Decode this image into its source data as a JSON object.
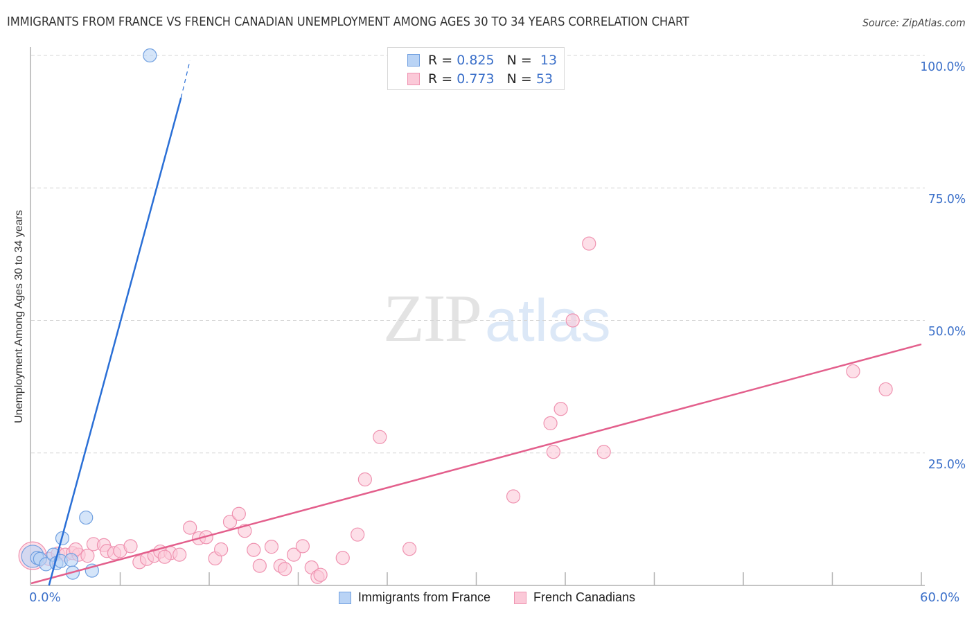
{
  "header": {
    "title": "IMMIGRANTS FROM FRANCE VS FRENCH CANADIAN UNEMPLOYMENT AMONG AGES 30 TO 34 YEARS CORRELATION CHART",
    "source": "Source: ZipAtlas.com"
  },
  "watermark": {
    "zip": "ZIP",
    "atlas": "atlas"
  },
  "stats_box": {
    "rows": [
      {
        "r_label": "R =",
        "r_value": "0.825",
        "n_label": "N =",
        "n_value": "13",
        "color": "#b9d3f5",
        "border": "#6f9fe0"
      },
      {
        "r_label": "R =",
        "r_value": "0.773",
        "n_label": "N =",
        "n_value": "53",
        "color": "#fbc9d8",
        "border": "#ef92b0"
      }
    ]
  },
  "legend": {
    "items": [
      {
        "label": "Immigrants from France",
        "color": "#b9d3f5",
        "border": "#6f9fe0"
      },
      {
        "label": "French Canadians",
        "color": "#fbc9d8",
        "border": "#ef92b0"
      }
    ]
  },
  "axes": {
    "ylabel": "Unemployment Among Ages 30 to 34 years",
    "y_ticks": [
      "100.0%",
      "75.0%",
      "50.0%",
      "25.0%"
    ],
    "x_ticks": [
      "0.0%",
      "60.0%"
    ]
  },
  "chart_data": {
    "type": "scatter",
    "title": "Immigrants from France vs French Canadian Unemployment Among Ages 30 to 34 years Correlation Chart",
    "xlabel": "",
    "ylabel": "Unemployment Among Ages 30 to 34 years",
    "xlim": [
      0,
      60
    ],
    "ylim": [
      0,
      100
    ],
    "x_tick_labels": [
      "0.0%",
      "60.0%"
    ],
    "y_tick_labels": [
      "25.0%",
      "50.0%",
      "75.0%",
      "100.0%"
    ],
    "grid": "horizontal dashed",
    "legend_position": "bottom",
    "series": [
      {
        "name": "Immigrants from France",
        "color": "#6f9fe0",
        "fill": "#b9d3f5",
        "R": 0.825,
        "N": 13,
        "points": [
          {
            "x": 0.1,
            "y": 5.5,
            "r": 16
          },
          {
            "x": 0.4,
            "y": 5.2
          },
          {
            "x": 0.6,
            "y": 5.0
          },
          {
            "x": 1.0,
            "y": 4.0
          },
          {
            "x": 1.5,
            "y": 5.8
          },
          {
            "x": 1.7,
            "y": 4.2
          },
          {
            "x": 2.1,
            "y": 8.9
          },
          {
            "x": 2.0,
            "y": 4.6
          },
          {
            "x": 2.7,
            "y": 4.8
          },
          {
            "x": 2.8,
            "y": 2.4
          },
          {
            "x": 3.7,
            "y": 12.8
          },
          {
            "x": 4.1,
            "y": 2.8
          },
          {
            "x": 8.0,
            "y": 100.0
          }
        ],
        "trendline": {
          "x1": 1.2,
          "y1": 0,
          "x2": 10.1,
          "y2": 92.0,
          "dashed_to": {
            "x": 10.7,
            "y": 99.0
          }
        }
      },
      {
        "name": "French Canadians",
        "color": "#ef92b0",
        "fill": "#fbc9d8",
        "R": 0.773,
        "N": 53,
        "points": [
          {
            "x": 0.1,
            "y": 5.6,
            "r": 20
          },
          {
            "x": 1.2,
            "y": 5.0
          },
          {
            "x": 1.8,
            "y": 6.0
          },
          {
            "x": 2.3,
            "y": 5.8
          },
          {
            "x": 2.8,
            "y": 6.1
          },
          {
            "x": 3.2,
            "y": 5.8
          },
          {
            "x": 3.8,
            "y": 5.6
          },
          {
            "x": 4.2,
            "y": 7.8
          },
          {
            "x": 4.9,
            "y": 7.6
          },
          {
            "x": 5.1,
            "y": 6.5
          },
          {
            "x": 5.6,
            "y": 6.1
          },
          {
            "x": 6.0,
            "y": 6.5
          },
          {
            "x": 6.7,
            "y": 7.4
          },
          {
            "x": 7.3,
            "y": 4.4
          },
          {
            "x": 7.8,
            "y": 5.0
          },
          {
            "x": 8.3,
            "y": 5.6
          },
          {
            "x": 8.7,
            "y": 6.4
          },
          {
            "x": 9.4,
            "y": 6.1
          },
          {
            "x": 10.0,
            "y": 5.8
          },
          {
            "x": 10.7,
            "y": 10.9
          },
          {
            "x": 11.3,
            "y": 8.9
          },
          {
            "x": 11.8,
            "y": 9.1
          },
          {
            "x": 12.4,
            "y": 5.1
          },
          {
            "x": 12.8,
            "y": 6.8
          },
          {
            "x": 13.4,
            "y": 12.0
          },
          {
            "x": 14.0,
            "y": 13.5
          },
          {
            "x": 14.4,
            "y": 10.3
          },
          {
            "x": 15.0,
            "y": 6.7
          },
          {
            "x": 15.4,
            "y": 3.7
          },
          {
            "x": 16.2,
            "y": 7.3
          },
          {
            "x": 16.8,
            "y": 3.7
          },
          {
            "x": 17.1,
            "y": 3.1
          },
          {
            "x": 17.7,
            "y": 5.8
          },
          {
            "x": 18.3,
            "y": 7.4
          },
          {
            "x": 18.9,
            "y": 3.4
          },
          {
            "x": 19.3,
            "y": 1.6
          },
          {
            "x": 19.5,
            "y": 2.0
          },
          {
            "x": 21.0,
            "y": 5.2
          },
          {
            "x": 22.0,
            "y": 9.6
          },
          {
            "x": 22.5,
            "y": 20.0
          },
          {
            "x": 23.5,
            "y": 28.0
          },
          {
            "x": 25.5,
            "y": 6.9
          },
          {
            "x": 32.5,
            "y": 16.8
          },
          {
            "x": 35.0,
            "y": 30.6
          },
          {
            "x": 35.2,
            "y": 25.2
          },
          {
            "x": 35.7,
            "y": 33.3
          },
          {
            "x": 36.5,
            "y": 50.0
          },
          {
            "x": 37.6,
            "y": 64.5
          },
          {
            "x": 38.6,
            "y": 25.2
          },
          {
            "x": 55.4,
            "y": 40.4
          },
          {
            "x": 57.6,
            "y": 37.0
          },
          {
            "x": 3.0,
            "y": 6.8
          },
          {
            "x": 9.0,
            "y": 5.4
          }
        ],
        "trendline": {
          "x1": 0,
          "y1": 0,
          "x2": 60,
          "y2": 45.5
        }
      }
    ]
  }
}
